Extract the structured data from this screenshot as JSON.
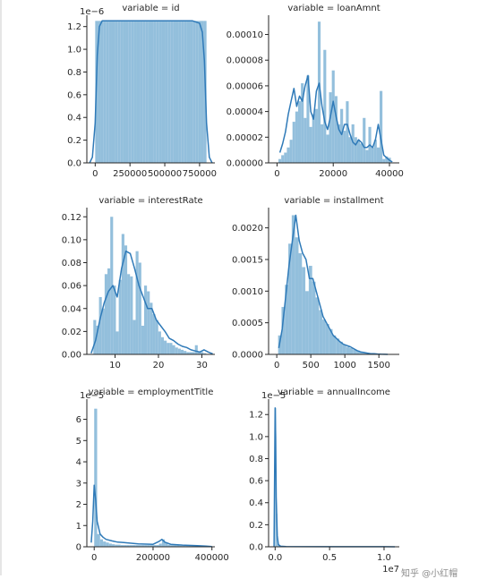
{
  "chart_data": [
    {
      "type": "histogram",
      "title": "variable = id",
      "xticks": [
        "0",
        "250000",
        "500000",
        "750000"
      ],
      "xtick_values": [
        0,
        250000,
        500000,
        750000
      ],
      "yticks": [
        "0.0",
        "0.2",
        "0.4",
        "0.6",
        "0.8",
        "1.0",
        "1.2"
      ],
      "ytick_values": [
        0,
        0.2,
        0.4,
        0.6,
        0.8,
        1.0,
        1.2
      ],
      "y_offset_label": "1e−6",
      "x_offset_label": "",
      "xlim": [
        -60000,
        860000
      ],
      "ylim": [
        0,
        1.3
      ],
      "bins": {
        "start": 0,
        "end": 800000,
        "heights": [
          1.25,
          1.25,
          1.25,
          1.25,
          1.25,
          1.25,
          1.25,
          1.25,
          1.25,
          1.25,
          1.25,
          1.25,
          1.25,
          1.25,
          1.25,
          1.25,
          1.25,
          1.25,
          1.25,
          1.25,
          1.25,
          1.25,
          1.25,
          1.25,
          1.25,
          1.25,
          1.25,
          1.25,
          1.25,
          1.25,
          1.25,
          1.25,
          1.25,
          1.25,
          1.25,
          1.25,
          1.25,
          1.25,
          1.25,
          1.25
        ]
      },
      "kde": {
        "x": [
          -40000,
          -20000,
          0,
          15000,
          30000,
          50000,
          100000,
          200000,
          300000,
          400000,
          500000,
          600000,
          700000,
          750000,
          770000,
          785000,
          800000,
          820000,
          840000
        ],
        "y": [
          0,
          0.05,
          0.35,
          0.95,
          1.2,
          1.25,
          1.25,
          1.25,
          1.25,
          1.25,
          1.25,
          1.25,
          1.25,
          1.23,
          1.15,
          0.9,
          0.35,
          0.05,
          0
        ]
      }
    },
    {
      "type": "histogram",
      "title": "variable = loanAmnt",
      "xticks": [
        "0",
        "20000",
        "40000"
      ],
      "xtick_values": [
        0,
        20000,
        40000
      ],
      "yticks": [
        "0.00000",
        "0.00002",
        "0.00004",
        "0.00006",
        "0.00008",
        "0.00010"
      ],
      "ytick_values": [
        0,
        2e-05,
        4e-05,
        6e-05,
        8e-05,
        0.0001
      ],
      "y_offset_label": "",
      "x_offset_label": "",
      "xlim": [
        -3000,
        43500
      ],
      "ylim": [
        0,
        0.000115
      ],
      "bins": {
        "start": 500,
        "end": 40500,
        "heights": [
          3e-06,
          6e-06,
          8e-06,
          1.2e-05,
          1.8e-05,
          3.2e-05,
          4e-05,
          4.8e-05,
          6.2e-05,
          3.5e-05,
          6.8e-05,
          2.8e-05,
          3.8e-05,
          4.2e-05,
          0.00011,
          3e-05,
          8.8e-05,
          2.2e-05,
          5.5e-05,
          7.2e-05,
          5.2e-05,
          3e-05,
          4.2e-05,
          2.5e-05,
          4.8e-05,
          2e-05,
          3e-05,
          2e-05,
          1.8e-05,
          1.5e-05,
          3.5e-05,
          1e-05,
          2.8e-05,
          1.2e-05,
          1.8e-05,
          1.2e-05,
          5.6e-05,
          3e-06,
          5e-06,
          4e-06
        ]
      },
      "kde": {
        "x": [
          1000,
          2000,
          3000,
          4000,
          5000,
          6000,
          7000,
          8000,
          9000,
          10000,
          11000,
          12000,
          13000,
          14000,
          15000,
          16000,
          17000,
          18000,
          19000,
          20000,
          21000,
          22000,
          23000,
          24000,
          25000,
          26000,
          27000,
          28000,
          29000,
          30000,
          31000,
          32000,
          33000,
          34000,
          35000,
          36000,
          37000,
          38000,
          39000,
          40000,
          41000
        ],
        "y": [
          8e-06,
          1.5e-05,
          2.4e-05,
          3.8e-05,
          4.8e-05,
          5.8e-05,
          4.4e-05,
          5.2e-05,
          4.8e-05,
          6e-05,
          6.8e-05,
          4e-05,
          3.4e-05,
          5.6e-05,
          6.2e-05,
          4.4e-05,
          3.2e-05,
          2.6e-05,
          3.6e-05,
          4.8e-05,
          3.6e-05,
          2.6e-05,
          2.2e-05,
          3e-05,
          3e-05,
          2.2e-05,
          1.6e-05,
          1.4e-05,
          1.8e-05,
          1.6e-05,
          1.2e-05,
          1.2e-05,
          1.4e-05,
          1.2e-05,
          1.8e-05,
          3e-05,
          1.8e-05,
          6e-06,
          4e-06,
          2e-06,
          8e-07
        ]
      }
    },
    {
      "type": "histogram",
      "title": "variable = interestRate",
      "xticks": [
        "10",
        "20",
        "30"
      ],
      "xtick_values": [
        10,
        20,
        30
      ],
      "yticks": [
        "0.00",
        "0.02",
        "0.04",
        "0.06",
        "0.08",
        "0.10",
        "0.12"
      ],
      "ytick_values": [
        0,
        0.02,
        0.04,
        0.06,
        0.08,
        0.1,
        0.12
      ],
      "y_offset_label": "",
      "x_offset_label": "",
      "xlim": [
        3.5,
        33
      ],
      "ylim": [
        0,
        0.128
      ],
      "bins": {
        "start": 5,
        "end": 31,
        "heights": [
          0.03,
          0.025,
          0.05,
          0.04,
          0.07,
          0.075,
          0.12,
          0.06,
          0.02,
          0.065,
          0.105,
          0.095,
          0.07,
          0.068,
          0.03,
          0.09,
          0.08,
          0.025,
          0.06,
          0.055,
          0.045,
          0.035,
          0.03,
          0.02,
          0.015,
          0.012,
          0.01,
          0.01,
          0.008,
          0.006,
          0.005,
          0.004,
          0.003,
          0.002,
          0.002,
          0.002,
          0.008,
          0.002,
          0.002,
          0.001
        ]
      },
      "kde": {
        "x": [
          4.5,
          5.5,
          6.5,
          7.5,
          8.5,
          9.5,
          10.5,
          11.5,
          12.5,
          13.5,
          14.5,
          15.5,
          16.5,
          17.5,
          18.5,
          19.5,
          20.5,
          21.5,
          22.5,
          23.5,
          24.5,
          25.5,
          26.5,
          27.5,
          28.5,
          29.5,
          30.5,
          31.5,
          32.5
        ],
        "y": [
          0.001,
          0.012,
          0.03,
          0.045,
          0.055,
          0.06,
          0.05,
          0.075,
          0.09,
          0.088,
          0.075,
          0.06,
          0.05,
          0.04,
          0.04,
          0.03,
          0.025,
          0.02,
          0.014,
          0.012,
          0.009,
          0.007,
          0.006,
          0.004,
          0.003,
          0.002,
          0.004,
          0.002,
          0.0005
        ]
      }
    },
    {
      "type": "histogram",
      "title": "variable = installment",
      "xticks": [
        "0",
        "500",
        "1000",
        "1500"
      ],
      "xtick_values": [
        0,
        500,
        1000,
        1500
      ],
      "yticks": [
        "0.0000",
        "0.0005",
        "0.0010",
        "0.0015",
        "0.0020"
      ],
      "ytick_values": [
        0,
        0.0005,
        0.001,
        0.0015,
        0.002
      ],
      "y_offset_label": "",
      "x_offset_label": "",
      "xlim": [
        -120,
        1800
      ],
      "ylim": [
        0,
        0.00232
      ],
      "bins": {
        "start": 20,
        "end": 1620,
        "heights": [
          0.0003,
          0.00075,
          0.0011,
          0.00175,
          0.0022,
          0.00185,
          0.0016,
          0.00138,
          0.001,
          0.0014,
          0.00115,
          0.0009,
          0.0007,
          0.00055,
          0.00048,
          0.0004,
          0.0003,
          0.00025,
          0.0002,
          0.00015,
          0.00012,
          0.0001,
          8e-05,
          6e-05,
          4e-05,
          3e-05,
          2e-05,
          1e-05,
          1e-05,
          1e-05,
          5e-06,
          5e-06
        ]
      },
      "kde": {
        "x": [
          30,
          80,
          130,
          180,
          230,
          280,
          330,
          380,
          430,
          480,
          530,
          580,
          630,
          680,
          730,
          780,
          830,
          880,
          930,
          980,
          1030,
          1080,
          1130,
          1180,
          1230,
          1280,
          1330,
          1380,
          1430,
          1480,
          1530,
          1580,
          1630
        ],
        "y": [
          0.0001,
          0.0004,
          0.0009,
          0.0014,
          0.0018,
          0.0022,
          0.0018,
          0.0016,
          0.0015,
          0.0012,
          0.0012,
          0.001,
          0.0008,
          0.0006,
          0.0005,
          0.0004,
          0.0003,
          0.00025,
          0.0002,
          0.00016,
          0.00014,
          0.00012,
          9e-05,
          6e-05,
          4e-05,
          3e-05,
          2e-05,
          1e-05,
          1e-05,
          5e-06,
          3e-06,
          1e-06,
          0
        ]
      }
    },
    {
      "type": "histogram",
      "title": "variable = employmentTitle",
      "xticks": [
        "0",
        "200000",
        "400000"
      ],
      "xtick_values": [
        0,
        200000,
        400000
      ],
      "yticks": [
        "0",
        "1",
        "2",
        "3",
        "4",
        "5",
        "6"
      ],
      "ytick_values": [
        0,
        1,
        2,
        3,
        4,
        5,
        6
      ],
      "y_offset_label": "1e−5",
      "x_offset_label": "",
      "xlim": [
        -25000,
        410000
      ],
      "ylim": [
        0,
        6.95
      ],
      "bins": {
        "start": 0,
        "end": 380000,
        "heights": [
          6.5,
          0.6,
          0.35,
          0.25,
          0.2,
          0.15,
          0.12,
          0.1,
          0.1,
          0.08,
          0.08,
          0.08,
          0.08,
          0.08,
          0.08,
          0.08,
          0.08,
          0.08,
          0.08,
          0.08,
          0.08,
          0.08,
          0.15,
          0.35,
          0.2,
          0.1,
          0.08,
          0.08,
          0.08,
          0.05,
          0.05,
          0.05,
          0.05,
          0.05,
          0.05,
          0.05,
          0.05,
          0.03
        ]
      },
      "kde": {
        "x": [
          -10000,
          -5000,
          0,
          5000,
          10000,
          20000,
          30000,
          40000,
          60000,
          80000,
          100000,
          150000,
          200000,
          220000,
          230000,
          240000,
          260000,
          300000,
          350000,
          380000,
          400000
        ],
        "y": [
          0.2,
          1.2,
          2.9,
          2.2,
          1.2,
          0.6,
          0.45,
          0.35,
          0.28,
          0.22,
          0.2,
          0.14,
          0.12,
          0.25,
          0.35,
          0.22,
          0.12,
          0.08,
          0.05,
          0.03,
          0.01
        ]
      }
    },
    {
      "type": "histogram",
      "title": "variable = annualIncome",
      "xticks": [
        "0.0",
        "0.5",
        "1.0"
      ],
      "xtick_values": [
        0,
        0.5,
        1.0
      ],
      "yticks": [
        "0.0",
        "0.2",
        "0.4",
        "0.6",
        "0.8",
        "1.0",
        "1.2"
      ],
      "ytick_values": [
        0,
        0.2,
        0.4,
        0.6,
        0.8,
        1.0,
        1.2
      ],
      "y_offset_label": "1e−5",
      "x_offset_label": "1e7",
      "xlim": [
        -0.06,
        1.14
      ],
      "ylim": [
        0,
        1.34
      ],
      "bins": {
        "start": 0,
        "end": 0.04,
        "heights": [
          1.26,
          0.3,
          0.05,
          0.01
        ]
      },
      "kde": {
        "x": [
          -0.01,
          0,
          0.005,
          0.01,
          0.02,
          0.03,
          0.05,
          0.1,
          0.5,
          1.0,
          1.1
        ],
        "y": [
          0,
          1.26,
          1.0,
          0.45,
          0.1,
          0.02,
          0.005,
          0.002,
          0.001,
          0.001,
          0
        ]
      }
    }
  ],
  "watermark": "知乎 @小红帽"
}
